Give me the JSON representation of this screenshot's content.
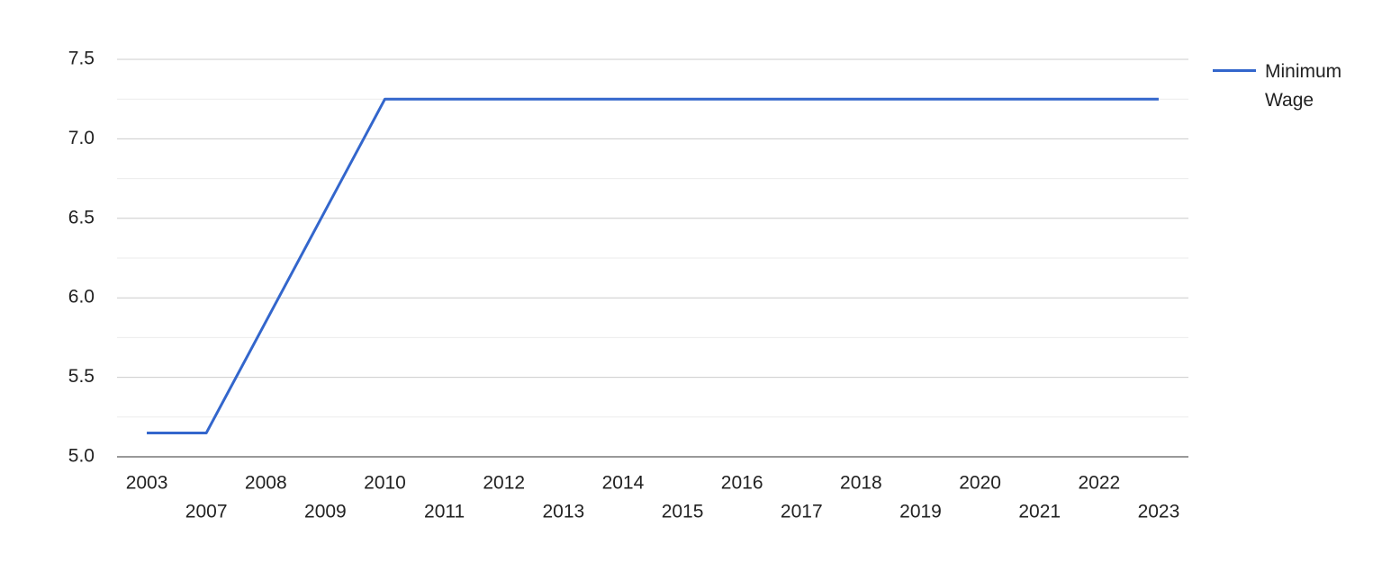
{
  "chart_data": {
    "type": "line",
    "categories": [
      "2003",
      "2007",
      "2008",
      "2009",
      "2010",
      "2011",
      "2012",
      "2013",
      "2014",
      "2015",
      "2016",
      "2017",
      "2018",
      "2019",
      "2020",
      "2021",
      "2022",
      "2023"
    ],
    "series": [
      {
        "name": "Minimum Wage",
        "color": "#3366cc",
        "values": [
          5.15,
          5.15,
          5.85,
          6.55,
          7.25,
          7.25,
          7.25,
          7.25,
          7.25,
          7.25,
          7.25,
          7.25,
          7.25,
          7.25,
          7.25,
          7.25,
          7.25,
          7.25
        ]
      }
    ],
    "ylim": [
      5,
      7.5
    ],
    "yticks": [
      {
        "value": 5,
        "label": "5.0"
      },
      {
        "value": 5.5,
        "label": "5.5"
      },
      {
        "value": 6,
        "label": "6.0"
      },
      {
        "value": 6.5,
        "label": "6.5"
      },
      {
        "value": 7,
        "label": "7.0"
      },
      {
        "value": 7.5,
        "label": "7.5"
      }
    ],
    "minor_yticks": [
      5.25,
      5.75,
      6.25,
      6.75,
      7.25
    ],
    "grid": true,
    "legend": "right"
  }
}
